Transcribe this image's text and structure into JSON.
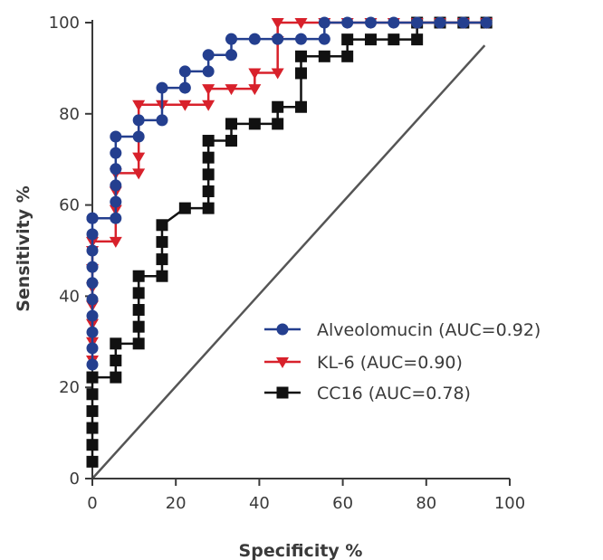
{
  "chart_data": {
    "type": "line",
    "xlabel": "Specificity %",
    "ylabel": "Sensitivity %",
    "xlim": [
      0,
      100
    ],
    "ylim": [
      0,
      100
    ],
    "x_ticks": [
      "0",
      "20",
      "40",
      "60",
      "80",
      "100"
    ],
    "y_ticks": [
      "0",
      "20",
      "40",
      "60",
      "80",
      "100"
    ],
    "grid": false,
    "legend_position": "lower-right",
    "reference_line": {
      "x": [
        0,
        94
      ],
      "y": [
        0,
        95
      ]
    },
    "series": [
      {
        "name": "Alveolomucin (AUC=0.92)",
        "color": "#243f8f",
        "marker": "circle",
        "x": [
          0,
          0,
          0,
          0,
          0,
          0,
          0,
          0,
          0,
          0,
          0,
          0,
          5.6,
          5.6,
          5.6,
          5.6,
          5.6,
          5.6,
          11.1,
          11.1,
          16.7,
          16.7,
          22.2,
          22.2,
          27.8,
          27.8,
          33.3,
          33.3,
          38.9,
          44.4,
          50,
          55.6,
          55.6,
          61.1,
          66.7,
          72.2,
          77.8,
          83.3,
          88.9,
          94.4
        ],
        "y": [
          25,
          28.6,
          32.1,
          35.7,
          39.3,
          42.9,
          46.4,
          50,
          53.6,
          57.1,
          57.1,
          57.1,
          57.1,
          60.7,
          64.3,
          67.9,
          71.4,
          75,
          75,
          78.6,
          78.6,
          85.7,
          85.7,
          89.3,
          89.3,
          92.9,
          92.9,
          96.4,
          96.4,
          96.4,
          96.4,
          96.4,
          100,
          100,
          100,
          100,
          100,
          100,
          100,
          100
        ]
      },
      {
        "name": "KL-6 (AUC=0.90)",
        "color": "#d8212b",
        "marker": "triangle-down",
        "x": [
          0,
          0,
          0,
          0,
          0,
          0,
          0,
          0,
          5.6,
          5.6,
          5.6,
          5.6,
          11.1,
          11.1,
          11.1,
          16.7,
          22.2,
          27.8,
          27.8,
          33.3,
          38.9,
          38.9,
          44.4,
          44.4,
          44.4,
          50,
          55.6,
          61.1,
          66.7,
          72.2,
          77.8,
          83.3,
          88.9,
          94.4
        ],
        "y": [
          26,
          30,
          34,
          38,
          42,
          46,
          50,
          52,
          52,
          59,
          63,
          67,
          67,
          70.5,
          82,
          82,
          82,
          82,
          85.5,
          85.5,
          85.5,
          89,
          89,
          96,
          100,
          100,
          100,
          100,
          100,
          100,
          100,
          100,
          100,
          100
        ]
      },
      {
        "name": "CC16 (AUC=0.78)",
        "color": "#111111",
        "marker": "square",
        "x": [
          0,
          0,
          0,
          0,
          0,
          0,
          0,
          5.6,
          5.6,
          5.6,
          11.1,
          11.1,
          11.1,
          11.1,
          11.1,
          16.7,
          16.7,
          16.7,
          16.7,
          22.2,
          27.8,
          27.8,
          27.8,
          27.8,
          27.8,
          33.3,
          33.3,
          38.9,
          44.4,
          44.4,
          50,
          50,
          50,
          55.6,
          61.1,
          61.1,
          66.7,
          72.2,
          77.8,
          77.8,
          83.3,
          88.9,
          94.4
        ],
        "y": [
          3.7,
          7.4,
          11.1,
          14.8,
          18.5,
          22.2,
          22.2,
          22.2,
          25.9,
          29.6,
          29.6,
          33.3,
          37,
          40.7,
          44.4,
          44.4,
          48.1,
          51.9,
          55.6,
          59.3,
          59.3,
          63,
          66.7,
          70.4,
          74.1,
          74.1,
          77.8,
          77.8,
          77.8,
          81.5,
          81.5,
          88.9,
          92.6,
          92.6,
          92.6,
          96.3,
          96.3,
          96.3,
          96.3,
          100,
          100,
          100,
          100
        ]
      }
    ]
  }
}
